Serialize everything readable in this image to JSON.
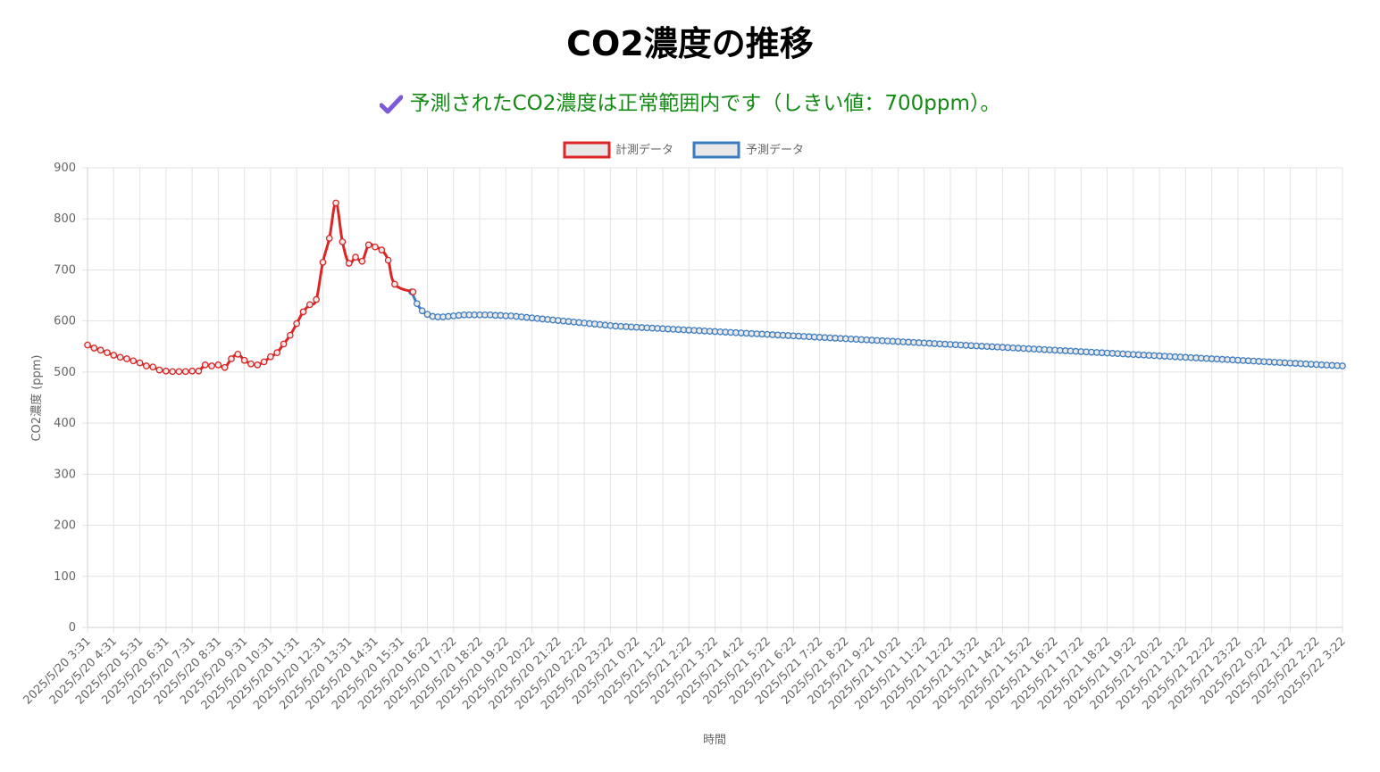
{
  "page": {
    "title": "CO2濃度の推移",
    "status_message": "予測されたCO2濃度は正常範囲内です（しきい値：700ppm）。",
    "status_icon": "check-mark-icon",
    "status_color": "#138a13"
  },
  "chart_data": {
    "type": "line",
    "xlabel": "時間",
    "ylabel": "CO2濃度 (ppm)",
    "ylim": [
      0,
      900
    ],
    "yticks": [
      0,
      100,
      200,
      300,
      400,
      500,
      600,
      700,
      800,
      900
    ],
    "grid": true,
    "legend_position": "top-center",
    "x_tick_labels": [
      "2025/5/20 3:31",
      "2025/5/20 4:31",
      "2025/5/20 5:31",
      "2025/5/20 6:31",
      "2025/5/20 7:31",
      "2025/5/20 8:31",
      "2025/5/20 9:31",
      "2025/5/20 10:31",
      "2025/5/20 11:31",
      "2025/5/20 12:31",
      "2025/5/20 13:31",
      "2025/5/20 14:31",
      "2025/5/20 15:31",
      "2025/5/20 16:22",
      "2025/5/20 17:22",
      "2025/5/20 18:22",
      "2025/5/20 19:22",
      "2025/5/20 20:22",
      "2025/5/20 21:22",
      "2025/5/20 22:22",
      "2025/5/20 23:22",
      "2025/5/21 0:22",
      "2025/5/21 1:22",
      "2025/5/21 2:22",
      "2025/5/21 3:22",
      "2025/5/21 4:22",
      "2025/5/21 5:22",
      "2025/5/21 6:22",
      "2025/5/21 7:22",
      "2025/5/21 8:22",
      "2025/5/21 9:22",
      "2025/5/21 10:22",
      "2025/5/21 11:22",
      "2025/5/21 12:22",
      "2025/5/21 13:22",
      "2025/5/21 14:22",
      "2025/5/21 15:22",
      "2025/5/21 16:22",
      "2025/5/21 17:22",
      "2025/5/21 18:22",
      "2025/5/21 19:22",
      "2025/5/21 20:22",
      "2025/5/21 21:22",
      "2025/5/21 22:22",
      "2025/5/21 23:22",
      "2025/5/22 0:22",
      "2025/5/22 1:22",
      "2025/5/22 2:22",
      "2025/5/22 3:22"
    ],
    "points_per_tick": 5,
    "series": [
      {
        "name": "計測データ",
        "color": "#dc2626",
        "start_index": 0,
        "values": [
          553,
          547,
          543,
          538,
          533,
          529,
          526,
          522,
          518,
          512,
          510,
          504,
          502,
          501,
          501,
          501,
          502,
          502,
          514,
          512,
          514,
          509,
          526,
          535,
          523,
          516,
          514,
          520,
          530,
          538,
          555,
          572,
          595,
          618,
          632,
          642,
          715,
          762,
          831,
          755,
          713,
          725,
          717,
          749,
          745,
          739,
          719,
          672,
          657
        ]
      },
      {
        "name": "予測データ",
        "color": "#3b7bbf",
        "start_index": 62,
        "decay_from_index": 135,
        "values_head": [
          657,
          634,
          620,
          613,
          609,
          608,
          608,
          609,
          610,
          611,
          612,
          612,
          612,
          612,
          612,
          612,
          611,
          611,
          610,
          610,
          609,
          608,
          607,
          606,
          605,
          604,
          603,
          602,
          601,
          600,
          599,
          598,
          597,
          596,
          595,
          594,
          593,
          592,
          591,
          590
        ],
        "end_value": 512
      }
    ]
  }
}
